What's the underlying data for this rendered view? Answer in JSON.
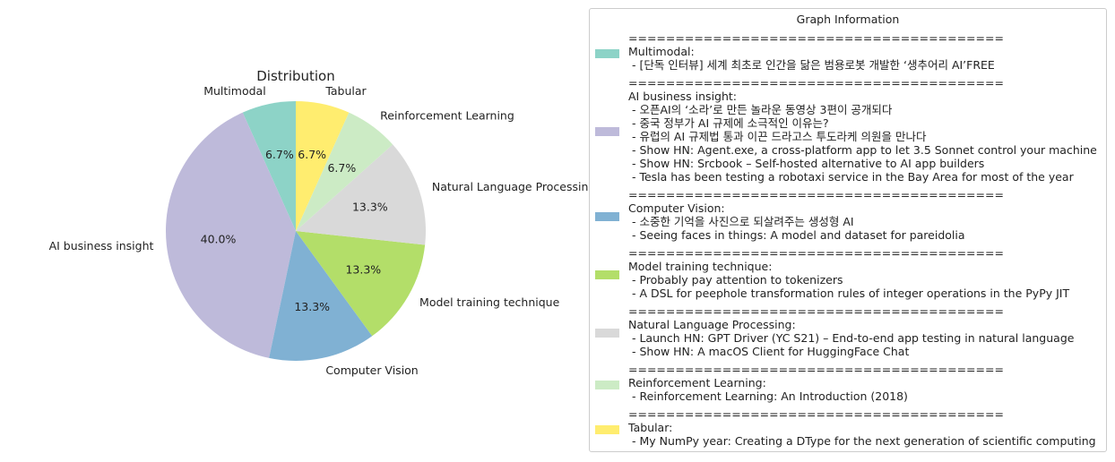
{
  "chart_data": {
    "type": "pie",
    "title": "Distribution",
    "categories": [
      "Multimodal",
      "AI business insight",
      "Computer Vision",
      "Model training technique",
      "Natural Language Processing",
      "Reinforcement Learning",
      "Tabular"
    ],
    "values": [
      6.7,
      40.0,
      13.3,
      13.3,
      13.3,
      6.7,
      6.7
    ],
    "value_labels": [
      "6.7%",
      "40.0%",
      "13.3%",
      "13.3%",
      "13.3%",
      "6.7%",
      "6.7%"
    ],
    "colors": [
      "#8dd3c7",
      "#bebada",
      "#80b1d3",
      "#b3de69",
      "#d9d9d9",
      "#ccebc5",
      "#ffed6f"
    ],
    "start_angle_deg": 90,
    "direction": "counterclockwise",
    "legend": {
      "title": "Graph Information",
      "placement": "right",
      "separator": "========================================",
      "entries": [
        {
          "color": "#8dd3c7",
          "lines": [
            "Multimodal:",
            " - [단독 인터뷰] 세계 최초로 인간을 닮은 범용로봇 개발한 ‘생추어리 AI’FREE"
          ]
        },
        {
          "color": "#bebada",
          "lines": [
            "AI business insight:",
            " - 오픈AI의 ‘소라’로 만든 놀라운 동영상 3편이 공개되다",
            " - 중국 정부가 AI 규제에 소극적인 이유는?",
            " - 유럽의 AI 규제법 통과 이끈 드라고스 투도라케 의원을 만나다",
            " - Show HN: Agent.exe, a cross-platform app to let 3.5 Sonnet control your machine",
            " - Show HN: Srcbook – Self-hosted alternative to AI app builders",
            " - Tesla has been testing a robotaxi service in the Bay Area for most of the year"
          ]
        },
        {
          "color": "#80b1d3",
          "lines": [
            "Computer Vision:",
            " - 소중한 기억을 사진으로 되살려주는 생성형 AI",
            " - Seeing faces in things: A model and dataset for pareidolia"
          ]
        },
        {
          "color": "#b3de69",
          "lines": [
            "Model training technique:",
            " - Probably pay attention to tokenizers",
            " - A DSL for peephole transformation rules of integer operations in the PyPy JIT"
          ]
        },
        {
          "color": "#d9d9d9",
          "lines": [
            "Natural Language Processing:",
            " - Launch HN: GPT Driver (YC S21) – End-to-end app testing in natural language",
            " - Show HN: A macOS Client for HuggingFace Chat"
          ]
        },
        {
          "color": "#ccebc5",
          "lines": [
            "Reinforcement Learning:",
            " - Reinforcement Learning: An Introduction (2018)"
          ]
        },
        {
          "color": "#ffed6f",
          "lines": [
            "Tabular:",
            " - My NumPy year: Creating a DType for the next generation of scientific computing"
          ]
        }
      ]
    }
  }
}
